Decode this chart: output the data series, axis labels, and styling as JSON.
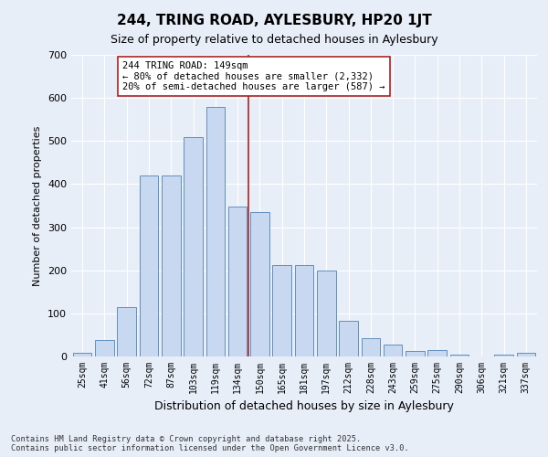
{
  "title": "244, TRING ROAD, AYLESBURY, HP20 1JT",
  "subtitle": "Size of property relative to detached houses in Aylesbury",
  "xlabel": "Distribution of detached houses by size in Aylesbury",
  "ylabel": "Number of detached properties",
  "categories": [
    "25sqm",
    "41sqm",
    "56sqm",
    "72sqm",
    "87sqm",
    "103sqm",
    "119sqm",
    "134sqm",
    "150sqm",
    "165sqm",
    "181sqm",
    "197sqm",
    "212sqm",
    "228sqm",
    "243sqm",
    "259sqm",
    "275sqm",
    "290sqm",
    "306sqm",
    "321sqm",
    "337sqm"
  ],
  "values": [
    8,
    38,
    114,
    420,
    420,
    510,
    580,
    347,
    335,
    213,
    213,
    200,
    83,
    42,
    27,
    12,
    14,
    5,
    0,
    5,
    8
  ],
  "bar_color": "#c8d8f0",
  "bar_edge_color": "#6090c0",
  "vline_color": "#aa2222",
  "annotation_text": "244 TRING ROAD: 149sqm\n← 80% of detached houses are smaller (2,332)\n20% of semi-detached houses are larger (587) →",
  "annotation_box_color": "#ffffff",
  "annotation_box_edge": "#aa2222",
  "background_color": "#e8eef8",
  "ylim": [
    0,
    700
  ],
  "yticks": [
    0,
    100,
    200,
    300,
    400,
    500,
    600,
    700
  ],
  "footer_line1": "Contains HM Land Registry data © Crown copyright and database right 2025.",
  "footer_line2": "Contains public sector information licensed under the Open Government Licence v3.0."
}
